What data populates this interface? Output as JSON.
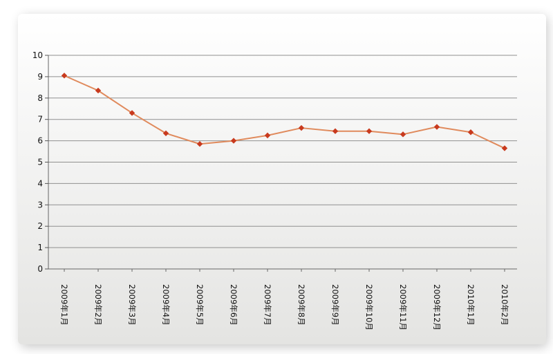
{
  "chart_data": {
    "type": "line",
    "title": "",
    "xlabel": "",
    "ylabel": "",
    "ylim": [
      0,
      10
    ],
    "yticks": [
      "0",
      "1",
      "2",
      "3",
      "4",
      "5",
      "6",
      "7",
      "8",
      "9",
      "10"
    ],
    "grid": true,
    "legend": "none",
    "categories": [
      "2009年1月",
      "2009年2月",
      "2009年3月",
      "2009年4月",
      "2009年5月",
      "2009年6月",
      "2009年7月",
      "2009年8月",
      "2009年9月",
      "2009年10月",
      "2009年11月",
      "2009年12月",
      "2010年1月",
      "2010年2月"
    ],
    "series": [
      {
        "values": [
          9.05,
          8.35,
          7.3,
          6.35,
          5.85,
          6.0,
          6.25,
          6.6,
          6.45,
          6.45,
          6.3,
          6.65,
          6.4,
          5.65
        ]
      }
    ],
    "colors": {
      "line": "#e08a5c",
      "marker": "#c83a1e",
      "grid": "#8f8f8f"
    }
  }
}
